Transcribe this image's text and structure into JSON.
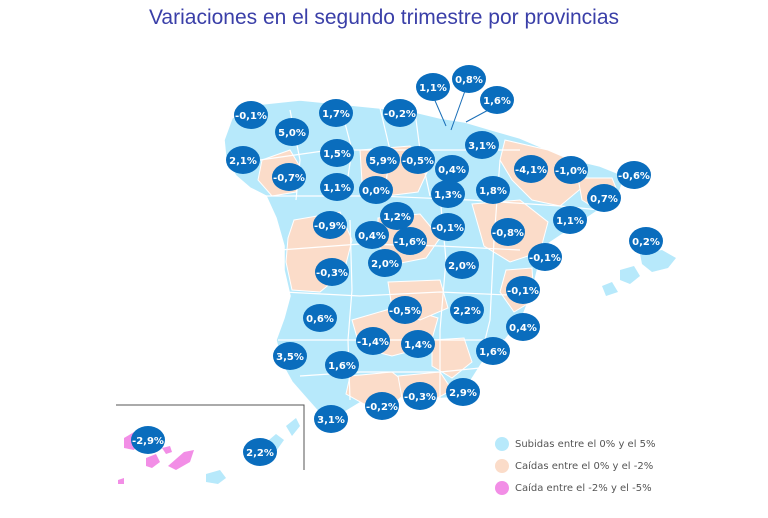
{
  "title": "Variaciones en el segundo trimestre por provincias",
  "colors": {
    "rise": "#b7e9fb",
    "fall_small": "#fbdcc9",
    "fall_large": "#f28ee6",
    "badge": "#0a6dbd",
    "badge_text": "#ffffff",
    "border": "#ffffff"
  },
  "legend": [
    {
      "label": "Subidas entre el 0% y el 5%",
      "color_key": "rise"
    },
    {
      "label": "Caídas entre el 0% y el -2%",
      "color_key": "fall_small"
    },
    {
      "label": "Caída entre el -2% y el -5%",
      "color_key": "fall_large"
    }
  ],
  "labels": [
    "-0,1%",
    "1,7%",
    "-0,2%",
    "1,1%",
    "0,8%",
    "1,6%",
    "5,0%",
    "2,1%",
    "-0,7%",
    "1,5%",
    "5,9%",
    "-0,5%",
    "0,4%",
    "3,1%",
    "-4,1%",
    "-1,0%",
    "-0,6%",
    "1,1%",
    "0,0%",
    "1,3%",
    "1,8%",
    "0,7%",
    "1,2%",
    "-0,9%",
    "0,4%",
    "-1,6%",
    "-0,1%",
    "-0,8%",
    "1,1%",
    "0,2%",
    "-0,3%",
    "2,0%",
    "2,0%",
    "-0,1%",
    "-0,1%",
    "0,6%",
    "-0,5%",
    "2,2%",
    "0,4%",
    "-1,4%",
    "1,4%",
    "1,6%",
    "3,5%",
    "1,6%",
    "-0,2%",
    "-0,3%",
    "2,9%",
    "3,1%",
    "-2,9%",
    "2,2%"
  ]
}
